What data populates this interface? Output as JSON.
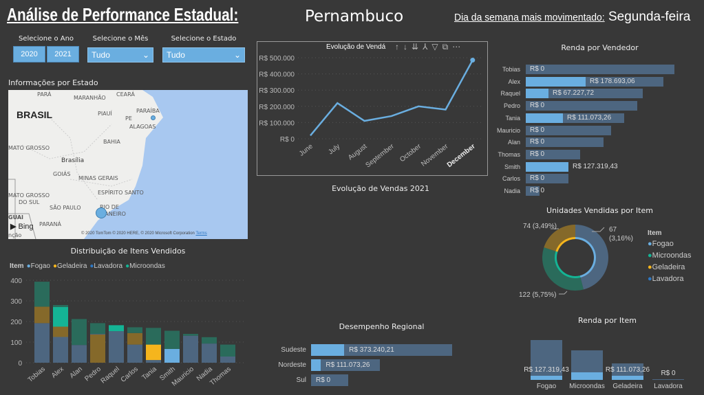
{
  "header": {
    "title": "Análise de Performance Estadual:",
    "state": "Pernambuco",
    "busiest_day_label": "Dia da semana mais movimentado:",
    "busiest_day": "Segunda-feira"
  },
  "filters": {
    "year_label": "Selecione o Ano",
    "years": [
      "2020",
      "2021"
    ],
    "month_label": "Selecione o Mês",
    "month_value": "Tudo",
    "state_label": "Selecione o Estado",
    "state_value": "Tudo"
  },
  "map": {
    "title": "Informações por Estado",
    "labels": [
      "PARÁ",
      "MARANHÃO",
      "CEARÁ",
      "PARAÍBA",
      "PIAUÍ",
      "PE",
      "ALAGOAS",
      "BRASIL",
      "BAHIA",
      "MATO GROSSO",
      "Brasília",
      "GOIÁS",
      "MINAS GERAIS",
      "ESPÍRITO SANTO",
      "MATO GROSSO",
      "DO SUL",
      "SÃO PAULO",
      "RIO DE",
      "JANEIRO",
      "PARANÁ",
      "GUAI",
      "nção"
    ],
    "bing": "Bing",
    "attribution": "© 2020 TomTom © 2020 HERE, © 2020 Microsoft Corporation",
    "terms": "Terms"
  },
  "line_chart": {
    "title": "Evolução de Vendas 2021",
    "header_title": "Evolução de Vendá",
    "categories": [
      "June",
      "July",
      "August",
      "September",
      "October",
      "November",
      "December"
    ],
    "values": [
      20000,
      220000,
      110000,
      140000,
      200000,
      180000,
      485000
    ],
    "yticks": [
      "R$ 0",
      "R$ 100.000",
      "R$ 200.000",
      "R$ 300.000",
      "R$ 400.000",
      "R$ 500.000"
    ],
    "ymax": 500000,
    "color": "#6aaee0"
  },
  "stacked": {
    "title": "Distribuição de Itens Vendidos",
    "legend_title": "Item",
    "legend": [
      {
        "name": "Fogao",
        "color": "#6aaee0"
      },
      {
        "name": "Geladeira",
        "color": "#f5b51d"
      },
      {
        "name": "Lavadora",
        "color": "#2e78c4"
      },
      {
        "name": "Microondas",
        "color": "#14b495"
      }
    ],
    "yticks": [
      "0",
      "100",
      "200",
      "300",
      "400"
    ],
    "bars": [
      {
        "name": "Tobias",
        "segs": [
          [
            192,
            "#4d6680"
          ],
          [
            80,
            "#85692a"
          ],
          [
            121,
            "#2a6b5b"
          ]
        ]
      },
      {
        "name": "Alex",
        "segs": [
          [
            125,
            "#4d6680"
          ],
          [
            50,
            "#85692a"
          ],
          [
            95,
            "#14b495"
          ],
          [
            10,
            "#2a6b5b"
          ]
        ]
      },
      {
        "name": "Alan",
        "segs": [
          [
            86,
            "#4d6680"
          ],
          [
            126,
            "#2a6b5b"
          ]
        ]
      },
      {
        "name": "Pedro",
        "segs": [
          [
            137,
            "#85692a"
          ],
          [
            3,
            "#4d6680"
          ],
          [
            52,
            "#2a6b5b"
          ]
        ]
      },
      {
        "name": "Raquel",
        "segs": [
          [
            153,
            "#4d6680"
          ],
          [
            29,
            "#14b495"
          ]
        ]
      },
      {
        "name": "Carlos",
        "segs": [
          [
            88,
            "#4d6680"
          ],
          [
            56,
            "#85692a"
          ],
          [
            28,
            "#2a6b5b"
          ]
        ]
      },
      {
        "name": "Tania",
        "segs": [
          [
            13,
            "#4d6680"
          ],
          [
            75,
            "#f5b51d"
          ],
          [
            81,
            "#2a6b5b"
          ]
        ]
      },
      {
        "name": "Smith",
        "segs": [
          [
            67,
            "#6aaee0"
          ],
          [
            88,
            "#2a6b5b"
          ]
        ]
      },
      {
        "name": "Mauricio",
        "segs": [
          [
            131,
            "#4d6680"
          ],
          [
            9,
            "#2a6b5b"
          ]
        ]
      },
      {
        "name": "Nadia",
        "segs": [
          [
            93,
            "#4d6680"
          ],
          [
            31,
            "#2a6b5b"
          ]
        ]
      },
      {
        "name": "Thomas",
        "segs": [
          [
            30,
            "#4d6680"
          ],
          [
            58,
            "#2a6b5b"
          ]
        ]
      }
    ]
  },
  "renda_vendedor": {
    "title": "Renda por Vendedor",
    "rows": [
      {
        "name": "Tobias",
        "total": 216,
        "highlight": 0,
        "label": "R$ 0"
      },
      {
        "name": "Alex",
        "total": 200,
        "highlight": 87,
        "label": "R$ 178.693,06"
      },
      {
        "name": "Raquel",
        "total": 170,
        "highlight": 33,
        "label": "R$ 67.227,72"
      },
      {
        "name": "Pedro",
        "total": 162,
        "highlight": 0,
        "label": "R$ 0"
      },
      {
        "name": "Tania",
        "total": 143,
        "highlight": 54,
        "label": "R$ 111.073,26"
      },
      {
        "name": "Mauricio",
        "total": 124,
        "highlight": 0,
        "label": "R$ 0"
      },
      {
        "name": "Alan",
        "total": 113,
        "highlight": 0,
        "label": "R$ 0"
      },
      {
        "name": "Thomas",
        "total": 79,
        "highlight": 0,
        "label": "R$ 0"
      },
      {
        "name": "Smith",
        "total": 62,
        "highlight": 62,
        "label": "R$ 127.319,43"
      },
      {
        "name": "Carlos",
        "total": 62,
        "highlight": 0,
        "label": "R$ 0"
      },
      {
        "name": "Nadia",
        "total": 20,
        "highlight": 0,
        "label": "R$ 0"
      }
    ]
  },
  "donut": {
    "title": "Unidades Vendidas por Item",
    "legend_title": "Item",
    "legend": [
      {
        "name": "Fogao",
        "color": "#6aaee0"
      },
      {
        "name": "Microondas",
        "color": "#14b495"
      },
      {
        "name": "Geladeira",
        "color": "#f5b51d"
      },
      {
        "name": "Lavadora",
        "color": "#2e78c4"
      }
    ],
    "slices": [
      {
        "name": "Fogao",
        "share": 0.46,
        "dim": "#4d6680",
        "hi": "#6aaee0"
      },
      {
        "name": "Microondas",
        "share": 0.34,
        "dim": "#2a6b5b",
        "hi": "#14b495"
      },
      {
        "name": "Geladeira",
        "share": 0.2,
        "dim": "#85692a",
        "hi": "#f5b51d"
      }
    ],
    "labels": [
      "67",
      "(3,16%)",
      "74 (3,49%)",
      "122 (5,75%)"
    ]
  },
  "regional": {
    "title": "Desempenho Regional",
    "rows": [
      {
        "name": "Sudeste",
        "total": 1.0,
        "highlight": 0.235,
        "label": "R$ 373.240,21"
      },
      {
        "name": "Nordeste",
        "total": 0.49,
        "highlight": 0.07,
        "label": "R$ 111.073,26"
      },
      {
        "name": "Sul",
        "total": 0.265,
        "highlight": 0,
        "label": "R$ 0"
      }
    ]
  },
  "renda_item": {
    "title": "Renda por Item",
    "bars": [
      {
        "name": "Fogao",
        "total": 1.0,
        "highlight": 0.1,
        "label": "R$ 127.319,43"
      },
      {
        "name": "Microondas",
        "total": 0.74,
        "highlight": 0.19,
        "label": ""
      },
      {
        "name": "Geladeira",
        "total": 0.41,
        "highlight": 0.1,
        "label": "R$ 111.073,26"
      },
      {
        "name": "Lavadora",
        "total": 0.0,
        "highlight": 0,
        "label": "R$ 0"
      }
    ]
  }
}
